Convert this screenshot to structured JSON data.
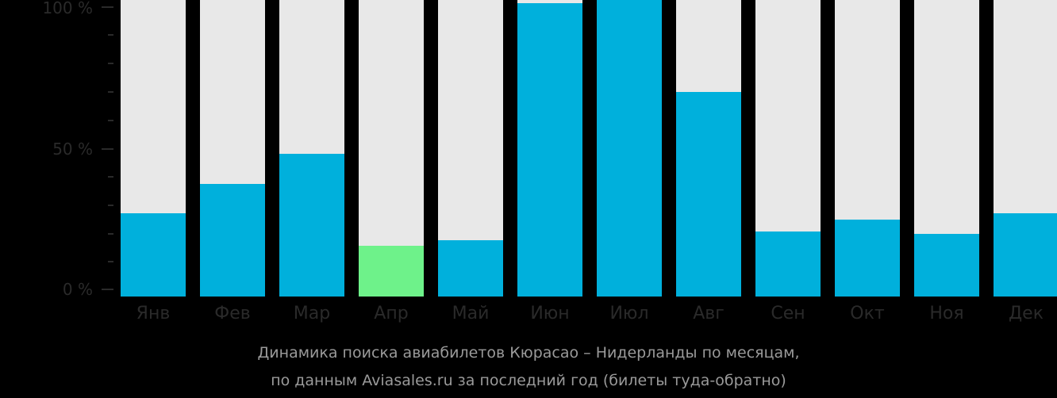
{
  "chart_data": {
    "type": "bar",
    "title": "Динамика поиска авиабилетов Кюрасао – Нидерланды по месяцам, по данным Aviasales.ru за последний год (билеты туда-обратно)",
    "xlabel": "",
    "ylabel": "",
    "ylim": [
      0,
      100
    ],
    "y_ticks": [
      "0 %",
      "50 %",
      "100 %"
    ],
    "categories": [
      "Янв",
      "Фев",
      "Мар",
      "Апр",
      "Май",
      "Июн",
      "Июл",
      "Авг",
      "Сен",
      "Окт",
      "Ноя",
      "Дек"
    ],
    "values": [
      28,
      38,
      48,
      17,
      19,
      99,
      100,
      69,
      22,
      26,
      21,
      28
    ],
    "highlight_index": 3,
    "colors": {
      "bar": "#00b0dc",
      "highlight": "#6ef28a",
      "track": "#e8e8e8",
      "background": "#000000"
    },
    "grid": false,
    "legend": null
  },
  "axis": {
    "y_labels": {
      "top": "100 %",
      "mid": "50 %",
      "zero": "0 %"
    }
  },
  "caption": {
    "line1": "Динамика поиска авиабилетов Кюрасао – Нидерланды по месяцам,",
    "line2": "по данным Aviasales.ru за последний год (билеты туда-обратно)"
  }
}
